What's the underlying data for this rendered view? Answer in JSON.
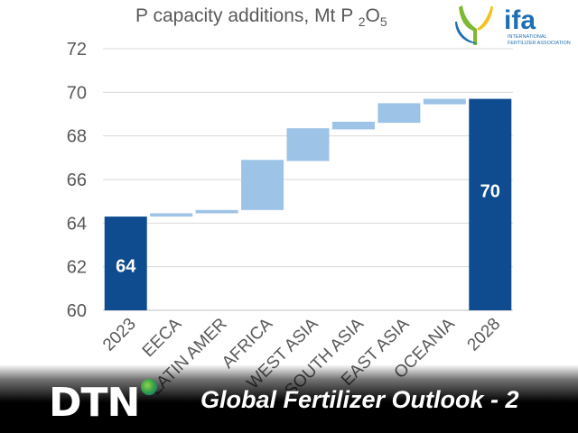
{
  "chart_data": {
    "type": "waterfall",
    "title_main": "P capacity additions, Mt P ",
    "title_sub": "2",
    "title_o": "O",
    "title_sub2": "5",
    "categories": [
      "2023",
      "EECA",
      "LATIN AMER",
      "AFRICA",
      "WEST ASIA",
      "SOUTH ASIA",
      "EAST ASIA",
      "OCEANIA",
      "2028"
    ],
    "steps": [
      {
        "kind": "total",
        "value": 64.3,
        "label": "64"
      },
      {
        "kind": "delta",
        "start": 64.3,
        "end": 64.45
      },
      {
        "kind": "delta",
        "start": 64.45,
        "end": 64.6
      },
      {
        "kind": "delta",
        "start": 64.6,
        "end": 66.9
      },
      {
        "kind": "delta",
        "start": 66.85,
        "end": 68.35
      },
      {
        "kind": "delta",
        "start": 68.3,
        "end": 68.65
      },
      {
        "kind": "delta",
        "start": 68.6,
        "end": 69.5
      },
      {
        "kind": "delta",
        "start": 69.45,
        "end": 69.7
      },
      {
        "kind": "total",
        "value": 69.7,
        "label": "70"
      }
    ],
    "ylim": [
      60,
      72
    ],
    "yticks": [
      "60",
      "62",
      "64",
      "66",
      "68",
      "70",
      "72"
    ],
    "grid": true,
    "colors": {
      "total": "#0f4c8f",
      "delta": "#9dc3e6",
      "grid": "#d9d9d9",
      "tick": "#595959"
    }
  },
  "logo": {
    "text": "ifa",
    "sub1": "INTERNATIONAL",
    "sub2": "FERTILIZER ASSOCIATION"
  },
  "banner": {
    "brand": "DTN",
    "title": "Global Fertilizer Outlook - 2"
  }
}
